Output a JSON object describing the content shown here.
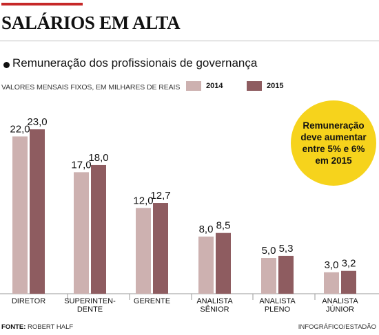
{
  "header": {
    "title": "SALÁRIOS EM ALTA",
    "subtitle": "Remuneração dos profissionais de governança",
    "units_note": "VALORES MENSAIS FIXOS, EM MILHARES DE REAIS"
  },
  "legend": [
    {
      "label": "2014",
      "color": "#cdb1b0"
    },
    {
      "label": "2015",
      "color": "#8e5c60"
    }
  ],
  "callout": {
    "text": "Remuneração deve aumentar entre 5% e 6% em 2015",
    "color": "#f6d31c"
  },
  "footer": {
    "source_label": "FONTE:",
    "source_value": "ROBERT HALF",
    "credit": "INFOGRÁFICO/ESTADÃO"
  },
  "chart_data": {
    "type": "bar",
    "categories": [
      [
        "DIRETOR"
      ],
      [
        "SUPERINTEN-",
        "DENTE"
      ],
      [
        "GERENTE"
      ],
      [
        "ANALISTA",
        "SÊNIOR"
      ],
      [
        "ANALISTA",
        "PLENO"
      ],
      [
        "ANALISTA",
        "JÚNIOR"
      ]
    ],
    "series": [
      {
        "name": "2014",
        "color": "#cdb1b0",
        "values": [
          22.0,
          17.0,
          12.0,
          8.0,
          5.0,
          3.0
        ],
        "labels": [
          "22,0",
          "17,0",
          "12,0",
          "8,0",
          "5,0",
          "3,0"
        ]
      },
      {
        "name": "2015",
        "color": "#8e5c60",
        "values": [
          23.0,
          18.0,
          12.7,
          8.5,
          5.3,
          3.2
        ],
        "labels": [
          "23,0",
          "18,0",
          "12,7",
          "8,5",
          "5,3",
          "3,2"
        ]
      }
    ],
    "ylim": [
      0,
      23.0
    ],
    "grid": false,
    "legend_position": "top"
  }
}
